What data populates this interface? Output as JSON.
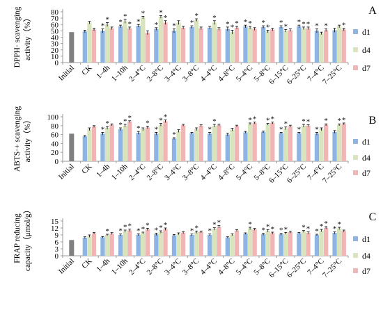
{
  "colors": {
    "initial": "#808080",
    "d1": "#8db4e2",
    "d4": "#d7e4bc",
    "d7": "#f2b5b5",
    "axis": "#9a9a9a",
    "error": "#000000"
  },
  "categories": [
    "Initial",
    "CK",
    "1–4h",
    "1–10h",
    "2–4°C",
    "2–8°C",
    "3–4°C",
    "3–8°C",
    "4–4°C",
    "4–8°C",
    "5–4°C",
    "5–8°C",
    "6–15°C",
    "6–25°C",
    "7–4°C",
    "7–25°C"
  ],
  "chart_data": [
    {
      "type": "bar",
      "panel_label": "A",
      "ylabel_lines": [
        "DPPH· scavenging",
        "activity（%）"
      ],
      "ylim": [
        0,
        80
      ],
      "yticks": [
        0,
        10,
        20,
        30,
        40,
        50,
        60,
        70,
        80
      ],
      "grid": false,
      "legend_position": "right",
      "initial": 48,
      "series": [
        {
          "name": "d1",
          "values": [
            49,
            50,
            57,
            58,
            53,
            50,
            56,
            55,
            53,
            57,
            56,
            56,
            57,
            50,
            51
          ],
          "err": [
            2,
            3,
            2,
            2,
            2,
            3,
            2,
            2,
            3,
            2,
            2,
            2,
            2,
            3,
            3
          ],
          "stars": [
            false,
            true,
            true,
            true,
            true,
            true,
            true,
            false,
            true,
            true,
            true,
            true,
            true,
            true,
            false
          ]
        },
        {
          "name": "d4",
          "values": [
            63,
            60,
            65,
            71,
            72,
            63,
            67,
            63,
            48,
            55,
            49,
            50,
            54,
            46,
            57
          ],
          "err": [
            2,
            3,
            3,
            2,
            2,
            3,
            2,
            3,
            3,
            2,
            2,
            2,
            2,
            2,
            2
          ],
          "stars": [
            false,
            true,
            true,
            true,
            true,
            false,
            true,
            true,
            true,
            true,
            true,
            true,
            true,
            false,
            false
          ]
        },
        {
          "name": "d7",
          "values": [
            52,
            54,
            54,
            47,
            63,
            55,
            54,
            53,
            55,
            53,
            52,
            51,
            54,
            51,
            52
          ],
          "err": [
            2,
            2,
            2,
            3,
            3,
            2,
            2,
            2,
            2,
            2,
            2,
            2,
            2,
            2,
            2
          ],
          "stars": [
            false,
            false,
            true,
            false,
            true,
            false,
            false,
            false,
            true,
            false,
            false,
            false,
            true,
            true,
            true
          ]
        }
      ]
    },
    {
      "type": "bar",
      "panel_label": "B",
      "ylabel_lines": [
        "ABTS·+ scavenging",
        "activity（%）"
      ],
      "ylim": [
        0,
        100
      ],
      "yticks": [
        0,
        20,
        40,
        60,
        80,
        100
      ],
      "grid": false,
      "legend_position": "right",
      "initial": 62,
      "series": [
        {
          "name": "d1",
          "values": [
            56,
            62,
            72,
            64,
            62,
            51,
            63,
            62,
            60,
            65,
            66,
            63,
            63,
            62,
            66
          ],
          "err": [
            2,
            3,
            3,
            3,
            3,
            2,
            2,
            3,
            3,
            2,
            2,
            2,
            2,
            3,
            3
          ],
          "stars": [
            false,
            true,
            true,
            true,
            true,
            true,
            false,
            true,
            false,
            false,
            false,
            true,
            true,
            true,
            false
          ]
        },
        {
          "name": "d4",
          "values": [
            72,
            75,
            80,
            72,
            82,
            68,
            72,
            80,
            71,
            84,
            83,
            74,
            80,
            72,
            82
          ],
          "err": [
            3,
            3,
            3,
            3,
            3,
            3,
            3,
            3,
            3,
            2,
            2,
            3,
            3,
            3,
            2
          ],
          "stars": [
            false,
            true,
            true,
            false,
            true,
            false,
            false,
            true,
            false,
            true,
            true,
            true,
            true,
            false,
            true
          ]
        },
        {
          "name": "d7",
          "values": [
            78,
            82,
            89,
            76,
            90,
            81,
            80,
            81,
            79,
            86,
            86,
            79,
            80,
            82,
            84
          ],
          "err": [
            2,
            2,
            2,
            3,
            3,
            2,
            2,
            2,
            2,
            2,
            2,
            2,
            2,
            2,
            2
          ],
          "stars": [
            false,
            false,
            true,
            true,
            true,
            false,
            false,
            false,
            false,
            true,
            true,
            false,
            true,
            true,
            true
          ]
        }
      ]
    },
    {
      "type": "bar",
      "panel_label": "C",
      "ylabel_lines": [
        "FRAP reducing",
        "capacity（μmol/g）"
      ],
      "ylim": [
        0,
        15
      ],
      "yticks": [
        0,
        3,
        6,
        9,
        12,
        15
      ],
      "ytick_labels": [
        "0",
        "3",
        "6",
        "9",
        "12",
        "15"
      ],
      "grid": false,
      "legend_position": "right",
      "initial": 6.8,
      "series": [
        {
          "name": "d1",
          "values": [
            7.8,
            8.0,
            9.0,
            9.1,
            9.3,
            8.8,
            9.0,
            9.0,
            7.9,
            9.6,
            9.3,
            9.3,
            9.7,
            9.0,
            9.9
          ],
          "err": [
            0.4,
            0.3,
            0.4,
            0.4,
            0.5,
            0.4,
            0.4,
            0.4,
            0.3,
            0.3,
            0.4,
            0.4,
            0.4,
            0.3,
            0.4
          ],
          "stars": [
            false,
            false,
            true,
            true,
            true,
            false,
            true,
            true,
            false,
            false,
            true,
            true,
            false,
            true,
            true
          ]
        },
        {
          "name": "d4",
          "values": [
            8.5,
            9.0,
            10.6,
            9.8,
            10.3,
            9.5,
            10.2,
            11.6,
            9.1,
            11.8,
            10.8,
            9.7,
            10.5,
            10.9,
            11.8
          ],
          "err": [
            0.5,
            0.3,
            0.5,
            0.4,
            0.5,
            0.4,
            0.5,
            0.5,
            0.4,
            0.5,
            0.5,
            0.4,
            0.4,
            0.5,
            0.5
          ],
          "stars": [
            false,
            true,
            true,
            true,
            true,
            false,
            true,
            true,
            false,
            true,
            true,
            true,
            true,
            true,
            true
          ]
        },
        {
          "name": "d7",
          "values": [
            9.7,
            9.6,
            11.0,
            11.4,
            11.5,
            10.0,
            10.3,
            12.5,
            10.9,
            11.4,
            9.8,
            10.2,
            9.9,
            12.1,
            10.7
          ],
          "err": [
            0.4,
            0.4,
            0.5,
            0.5,
            0.5,
            0.4,
            0.4,
            0.5,
            0.4,
            0.4,
            0.4,
            0.4,
            0.4,
            0.5,
            0.4
          ],
          "stars": [
            false,
            false,
            true,
            true,
            true,
            false,
            false,
            true,
            false,
            false,
            true,
            false,
            true,
            true,
            false
          ]
        }
      ]
    }
  ]
}
